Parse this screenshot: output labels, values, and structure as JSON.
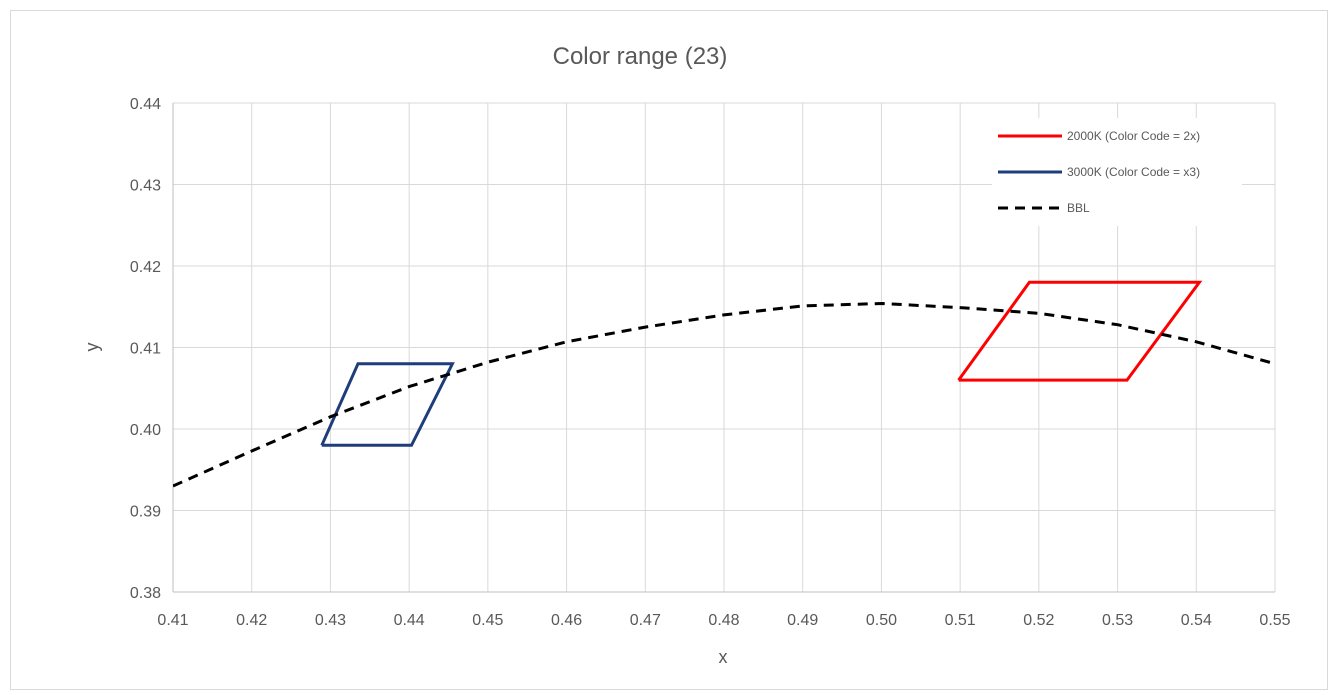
{
  "chart_data": {
    "type": "line",
    "title": "Color range (23)",
    "xlabel": "x",
    "ylabel": "y",
    "xlim": [
      0.41,
      0.55
    ],
    "ylim": [
      0.38,
      0.44
    ],
    "x_ticks": [
      "0.41",
      "0.42",
      "0.43",
      "0.44",
      "0.45",
      "0.46",
      "0.47",
      "0.48",
      "0.49",
      "0.50",
      "0.51",
      "0.52",
      "0.53",
      "0.54",
      "0.55"
    ],
    "y_ticks": [
      "0.38",
      "0.39",
      "0.40",
      "0.41",
      "0.42",
      "0.43",
      "0.44"
    ],
    "grid": true,
    "legend_position": "top-right",
    "series": [
      {
        "name": "2000K (Color Code = 2x)",
        "color": "#ff0000",
        "style": "solid",
        "points": [
          [
            0.5098,
            0.406
          ],
          [
            0.5188,
            0.418
          ],
          [
            0.5404,
            0.418
          ],
          [
            0.5312,
            0.406
          ],
          [
            0.5098,
            0.406
          ]
        ]
      },
      {
        "name": "3000K (Color Code = x3)",
        "color": "#1f3d7a",
        "style": "solid",
        "points": [
          [
            0.4289,
            0.398
          ],
          [
            0.4335,
            0.408
          ],
          [
            0.4455,
            0.408
          ],
          [
            0.4403,
            0.398
          ],
          [
            0.4289,
            0.398
          ]
        ]
      },
      {
        "name": "BBL",
        "color": "#000000",
        "style": "dashed",
        "points": [
          [
            0.41,
            0.393
          ],
          [
            0.42,
            0.3973
          ],
          [
            0.43,
            0.4015
          ],
          [
            0.44,
            0.4052
          ],
          [
            0.45,
            0.4082
          ],
          [
            0.46,
            0.4107
          ],
          [
            0.47,
            0.4125
          ],
          [
            0.48,
            0.414
          ],
          [
            0.49,
            0.4151
          ],
          [
            0.5,
            0.4154
          ],
          [
            0.51,
            0.4149
          ],
          [
            0.52,
            0.4142
          ],
          [
            0.53,
            0.4128
          ],
          [
            0.54,
            0.4107
          ],
          [
            0.55,
            0.408
          ]
        ]
      }
    ]
  }
}
